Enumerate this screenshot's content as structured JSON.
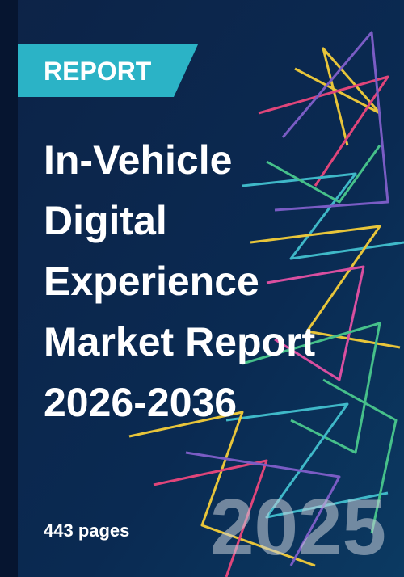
{
  "badge": "REPORT",
  "title_lines": [
    "In-Vehicle",
    "Digital",
    "Experience",
    "Market Report",
    "2026-2036"
  ],
  "pages": "443 pages",
  "year": "2025"
}
